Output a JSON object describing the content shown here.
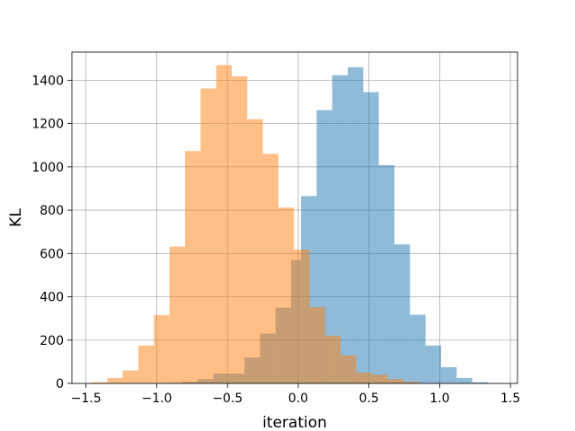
{
  "chart_data": {
    "type": "histogram",
    "title": "",
    "xlabel": "iteration",
    "ylabel": "KL",
    "xlim": [
      -1.6,
      1.55
    ],
    "ylim": [
      0,
      1530
    ],
    "grid": true,
    "x_ticks": [
      -1.5,
      -1.0,
      -0.5,
      0.0,
      0.5,
      1.0,
      1.5
    ],
    "x_tick_labels": [
      "−1.5",
      "−1.0",
      "−0.5",
      "0.0",
      "0.5",
      "1.0",
      "1.5"
    ],
    "y_ticks": [
      0,
      200,
      400,
      600,
      800,
      1000,
      1200,
      1400
    ],
    "y_tick_labels": [
      "0",
      "200",
      "400",
      "600",
      "800",
      "1000",
      "1200",
      "1400"
    ],
    "series": [
      {
        "color": "#1f77b4",
        "alpha": 0.5,
        "bins": [
          {
            "x0": -0.93,
            "x1": -0.82,
            "count": 3
          },
          {
            "x0": -0.82,
            "x1": -0.71,
            "count": 8
          },
          {
            "x0": -0.71,
            "x1": -0.6,
            "count": 20
          },
          {
            "x0": -0.6,
            "x1": -0.49,
            "count": 45
          },
          {
            "x0": -0.49,
            "x1": -0.38,
            "count": 45
          },
          {
            "x0": -0.38,
            "x1": -0.27,
            "count": 120
          },
          {
            "x0": -0.27,
            "x1": -0.16,
            "count": 230
          },
          {
            "x0": -0.16,
            "x1": -0.05,
            "count": 350
          },
          {
            "x0": -0.05,
            "x1": 0.02,
            "count": 570
          },
          {
            "x0": 0.02,
            "x1": 0.13,
            "count": 865
          },
          {
            "x0": 0.13,
            "x1": 0.24,
            "count": 1262
          },
          {
            "x0": 0.24,
            "x1": 0.35,
            "count": 1423
          },
          {
            "x0": 0.35,
            "x1": 0.46,
            "count": 1460
          },
          {
            "x0": 0.46,
            "x1": 0.57,
            "count": 1345
          },
          {
            "x0": 0.57,
            "x1": 0.68,
            "count": 1008
          },
          {
            "x0": 0.68,
            "x1": 0.79,
            "count": 642
          },
          {
            "x0": 0.79,
            "x1": 0.9,
            "count": 317
          },
          {
            "x0": 0.9,
            "x1": 1.01,
            "count": 175
          },
          {
            "x0": 1.01,
            "x1": 1.12,
            "count": 75
          },
          {
            "x0": 1.12,
            "x1": 1.23,
            "count": 25
          },
          {
            "x0": 1.23,
            "x1": 1.34,
            "count": 5
          }
        ]
      },
      {
        "color": "#ff7f0e",
        "alpha": 0.5,
        "bins": [
          {
            "x0": -1.46,
            "x1": -1.35,
            "count": 5
          },
          {
            "x0": -1.35,
            "x1": -1.24,
            "count": 25
          },
          {
            "x0": -1.24,
            "x1": -1.13,
            "count": 60
          },
          {
            "x0": -1.13,
            "x1": -1.02,
            "count": 175
          },
          {
            "x0": -1.02,
            "x1": -0.91,
            "count": 315
          },
          {
            "x0": -0.91,
            "x1": -0.8,
            "count": 632
          },
          {
            "x0": -0.8,
            "x1": -0.69,
            "count": 1073
          },
          {
            "x0": -0.69,
            "x1": -0.58,
            "count": 1362
          },
          {
            "x0": -0.58,
            "x1": -0.47,
            "count": 1470
          },
          {
            "x0": -0.47,
            "x1": -0.36,
            "count": 1418
          },
          {
            "x0": -0.36,
            "x1": -0.25,
            "count": 1220
          },
          {
            "x0": -0.25,
            "x1": -0.14,
            "count": 1060
          },
          {
            "x0": -0.14,
            "x1": -0.03,
            "count": 812
          },
          {
            "x0": -0.03,
            "x1": 0.08,
            "count": 618
          },
          {
            "x0": 0.08,
            "x1": 0.19,
            "count": 352
          },
          {
            "x0": 0.19,
            "x1": 0.3,
            "count": 220
          },
          {
            "x0": 0.3,
            "x1": 0.41,
            "count": 130
          },
          {
            "x0": 0.41,
            "x1": 0.52,
            "count": 50
          },
          {
            "x0": 0.52,
            "x1": 0.63,
            "count": 40
          },
          {
            "x0": 0.63,
            "x1": 0.74,
            "count": 20
          },
          {
            "x0": 0.74,
            "x1": 0.85,
            "count": 8
          }
        ]
      }
    ]
  }
}
